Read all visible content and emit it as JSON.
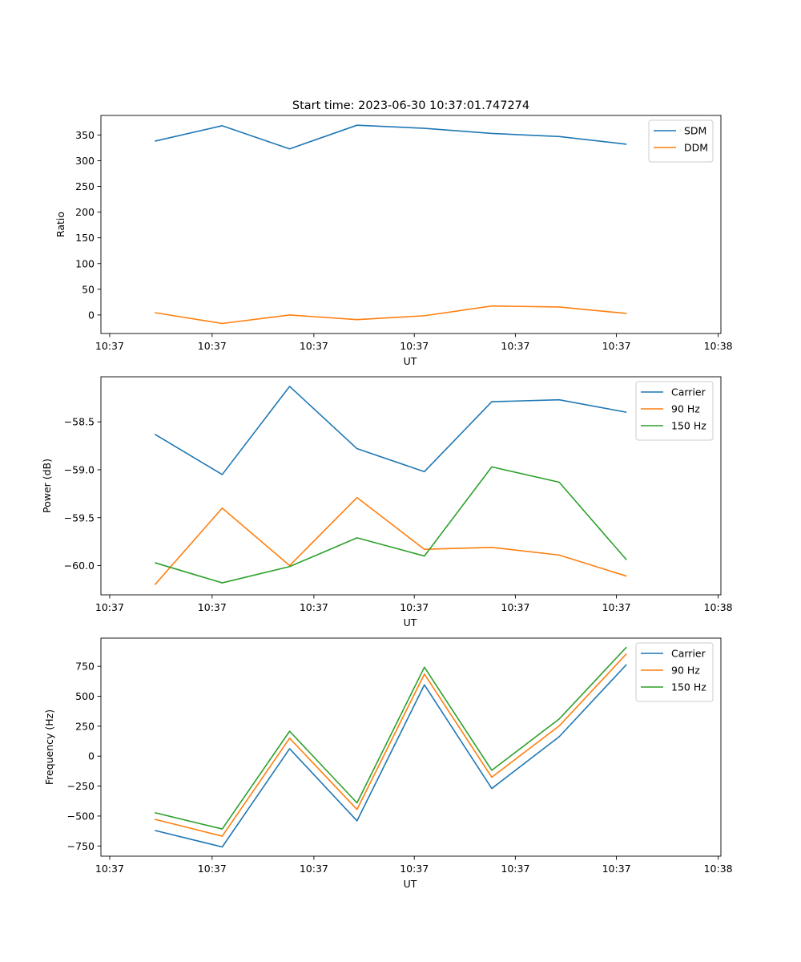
{
  "figure": {
    "title": "Start time: 2023-06-30 10:37:01.747274"
  },
  "chart_data": [
    {
      "type": "line",
      "title": "Start time: 2023-06-30 10:37:01.747274",
      "xlabel": "UT",
      "ylabel": "Ratio",
      "x": [
        1,
        2,
        3,
        4,
        5,
        6,
        7,
        8
      ],
      "xlim": [
        0.2,
        9.4
      ],
      "x_tick_positions": [
        0.33,
        1.85,
        3.36,
        4.85,
        6.35,
        7.85,
        9.36
      ],
      "x_tick_labels": [
        "10:37",
        "10:37",
        "10:37",
        "10:37",
        "10:37",
        "10:37",
        "10:38"
      ],
      "ylim": [
        -36,
        388
      ],
      "y_ticks": [
        0,
        50,
        100,
        150,
        200,
        250,
        300,
        350
      ],
      "y_tick_labels": [
        "0",
        "50",
        "100",
        "150",
        "200",
        "250",
        "300",
        "350"
      ],
      "legend_position": "top-right",
      "grid": false,
      "series": [
        {
          "name": "SDM",
          "color": "#1f77b4",
          "values": [
            338,
            368,
            323,
            369,
            363,
            353,
            347,
            332
          ]
        },
        {
          "name": "DDM",
          "color": "#ff7f0e",
          "values": [
            4.5,
            -16.5,
            0,
            -9,
            -1.5,
            17.5,
            15.5,
            3
          ]
        }
      ]
    },
    {
      "type": "line",
      "title": "",
      "xlabel": "UT",
      "ylabel": "Power (dB)",
      "x": [
        1,
        2,
        3,
        4,
        5,
        6,
        7,
        8
      ],
      "xlim": [
        0.2,
        9.4
      ],
      "x_tick_positions": [
        0.33,
        1.85,
        3.36,
        4.85,
        6.35,
        7.85,
        9.36
      ],
      "x_tick_labels": [
        "10:37",
        "10:37",
        "10:37",
        "10:37",
        "10:37",
        "10:37",
        "10:38"
      ],
      "ylim": [
        -60.305,
        -58.03
      ],
      "y_ticks": [
        -60.0,
        -59.5,
        -59.0,
        -58.5
      ],
      "y_tick_labels": [
        "−60.0",
        "−59.5",
        "−59.0",
        "−58.5"
      ],
      "legend_position": "top-right",
      "grid": false,
      "series": [
        {
          "name": "Carrier",
          "color": "#1f77b4",
          "values": [
            -58.63,
            -59.05,
            -58.13,
            -58.78,
            -59.02,
            -58.29,
            -58.27,
            -58.4
          ]
        },
        {
          "name": "90 Hz",
          "color": "#ff7f0e",
          "values": [
            -60.2,
            -59.4,
            -60.0,
            -59.29,
            -59.83,
            -59.81,
            -59.89,
            -60.11
          ]
        },
        {
          "name": "150 Hz",
          "color": "#2ca02c",
          "values": [
            -59.97,
            -60.18,
            -60.01,
            -59.71,
            -59.9,
            -58.97,
            -59.13,
            -59.94
          ]
        }
      ]
    },
    {
      "type": "line",
      "title": "",
      "xlabel": "UT",
      "ylabel": "Frequency (Hz)",
      "x": [
        1,
        2,
        3,
        4,
        5,
        6,
        7,
        8
      ],
      "xlim": [
        0.2,
        9.4
      ],
      "x_tick_positions": [
        0.33,
        1.85,
        3.36,
        4.85,
        6.35,
        7.85,
        9.36
      ],
      "x_tick_labels": [
        "10:37",
        "10:37",
        "10:37",
        "10:37",
        "10:37",
        "10:37",
        "10:38"
      ],
      "ylim": [
        -835,
        985
      ],
      "y_ticks": [
        -750,
        -500,
        -250,
        0,
        250,
        500,
        750
      ],
      "y_tick_labels": [
        "−750",
        "−500",
        "−250",
        "0",
        "250",
        "500",
        "750"
      ],
      "legend_position": "top-right",
      "grid": false,
      "series": [
        {
          "name": "Carrier",
          "color": "#1f77b4",
          "values": [
            -620,
            -758,
            62,
            -540,
            595,
            -270,
            162,
            765
          ]
        },
        {
          "name": "90 Hz",
          "color": "#ff7f0e",
          "values": [
            -527,
            -668,
            150,
            -445,
            685,
            -176,
            252,
            855
          ]
        },
        {
          "name": "150 Hz",
          "color": "#2ca02c",
          "values": [
            -472,
            -608,
            208,
            -390,
            742,
            -118,
            310,
            910
          ]
        }
      ]
    }
  ]
}
